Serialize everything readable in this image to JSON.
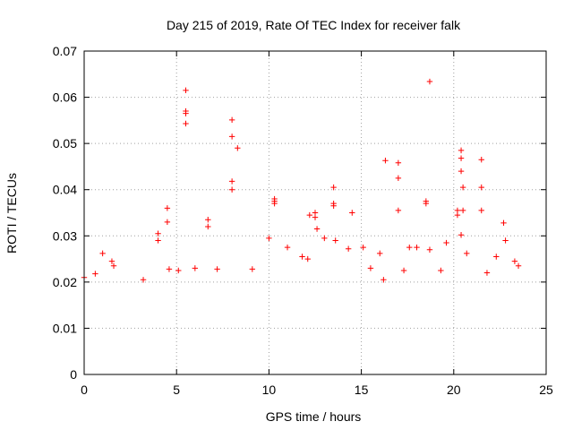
{
  "chart_data": {
    "type": "scatter",
    "title": "Day 215 of 2019, Rate Of TEC Index for receiver falk",
    "xlabel": "GPS time / hours",
    "ylabel": "ROTI / TECUs",
    "xlim": [
      0,
      25
    ],
    "ylim": [
      0,
      0.07
    ],
    "x_ticks": [
      "0",
      "5",
      "10",
      "15",
      "20",
      "25"
    ],
    "y_ticks": [
      "0",
      "0.01",
      "0.02",
      "0.03",
      "0.04",
      "0.05",
      "0.06",
      "0.07"
    ],
    "grid": true,
    "marker": "plus",
    "color": "#ff0000",
    "series": [
      {
        "points": [
          [
            5.5,
            0.0615
          ],
          [
            5.5,
            0.057
          ],
          [
            5.5,
            0.0565
          ],
          [
            5.5,
            0.0543
          ],
          [
            8.0,
            0.0551
          ],
          [
            8.0,
            0.0515
          ],
          [
            8.3,
            0.049
          ],
          [
            8.0,
            0.0418
          ],
          [
            8.0,
            0.04
          ],
          [
            18.7,
            0.0634
          ],
          [
            16.3,
            0.0463
          ],
          [
            17.0,
            0.0458
          ],
          [
            17.0,
            0.0425
          ],
          [
            17.0,
            0.0355
          ],
          [
            20.4,
            0.0485
          ],
          [
            20.4,
            0.0468
          ],
          [
            20.4,
            0.044
          ],
          [
            20.5,
            0.0405
          ],
          [
            20.5,
            0.0355
          ],
          [
            21.5,
            0.0465
          ],
          [
            21.5,
            0.0405
          ],
          [
            21.5,
            0.0355
          ],
          [
            22.7,
            0.0328
          ],
          [
            13.5,
            0.0405
          ],
          [
            13.5,
            0.037
          ],
          [
            13.5,
            0.0365
          ],
          [
            14.5,
            0.035
          ],
          [
            10.3,
            0.038
          ],
          [
            10.3,
            0.0375
          ],
          [
            10.3,
            0.037
          ],
          [
            12.5,
            0.035
          ],
          [
            12.5,
            0.034
          ],
          [
            6.7,
            0.0335
          ],
          [
            6.7,
            0.032
          ],
          [
            4.5,
            0.036
          ],
          [
            4.5,
            0.033
          ],
          [
            4.0,
            0.0305
          ],
          [
            4.0,
            0.029
          ],
          [
            18.5,
            0.0375
          ],
          [
            18.5,
            0.037
          ],
          [
            20.2,
            0.0355
          ],
          [
            20.2,
            0.0345
          ],
          [
            0.0,
            0.021
          ],
          [
            0.6,
            0.0218
          ],
          [
            1.0,
            0.0262
          ],
          [
            1.5,
            0.0245
          ],
          [
            1.6,
            0.0235
          ],
          [
            3.2,
            0.0205
          ],
          [
            4.6,
            0.0228
          ],
          [
            5.1,
            0.0225
          ],
          [
            6.0,
            0.023
          ],
          [
            7.2,
            0.0228
          ],
          [
            9.1,
            0.0228
          ],
          [
            10.0,
            0.0295
          ],
          [
            11.0,
            0.0275
          ],
          [
            11.8,
            0.0255
          ],
          [
            12.1,
            0.025
          ],
          [
            12.2,
            0.0345
          ],
          [
            12.6,
            0.0315
          ],
          [
            13.0,
            0.0295
          ],
          [
            13.6,
            0.029
          ],
          [
            14.3,
            0.0272
          ],
          [
            15.1,
            0.0275
          ],
          [
            15.5,
            0.023
          ],
          [
            16.0,
            0.0262
          ],
          [
            16.2,
            0.0205
          ],
          [
            17.3,
            0.0225
          ],
          [
            17.6,
            0.0275
          ],
          [
            18.0,
            0.0275
          ],
          [
            18.7,
            0.027
          ],
          [
            19.3,
            0.0225
          ],
          [
            19.6,
            0.0285
          ],
          [
            20.4,
            0.0302
          ],
          [
            20.7,
            0.0262
          ],
          [
            21.8,
            0.022
          ],
          [
            22.3,
            0.0255
          ],
          [
            22.8,
            0.029
          ],
          [
            23.3,
            0.0245
          ],
          [
            23.5,
            0.0235
          ]
        ]
      }
    ]
  }
}
